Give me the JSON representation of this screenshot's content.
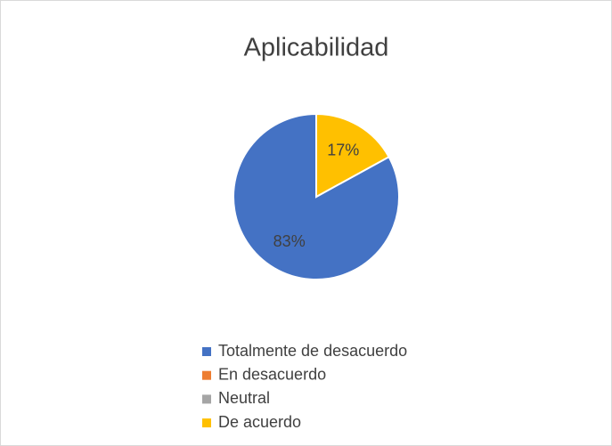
{
  "chart_data": {
    "type": "pie",
    "title": "Aplicabilidad",
    "categories": [
      "Totalmente de desacuerdo",
      "En desacuerdo",
      "Neutral",
      "De acuerdo"
    ],
    "values": [
      83,
      0,
      0,
      17
    ],
    "value_labels": [
      "83%",
      null,
      null,
      "17%"
    ],
    "colors": [
      "#4472c4",
      "#ed7d31",
      "#a5a5a5",
      "#ffc000"
    ],
    "legend": "bottom"
  }
}
